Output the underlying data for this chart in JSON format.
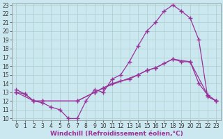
{
  "xlabel": "Windchill (Refroidissement éolien,°C)",
  "bg_color": "#cbe8f0",
  "line_color": "#993399",
  "grid_color": "#aacccc",
  "xlim": [
    -0.5,
    23.5
  ],
  "ylim": [
    9.8,
    23.2
  ],
  "xticks": [
    0,
    1,
    2,
    3,
    4,
    5,
    6,
    7,
    8,
    9,
    10,
    11,
    12,
    13,
    14,
    15,
    16,
    17,
    18,
    19,
    20,
    21,
    22,
    23
  ],
  "yticks": [
    10,
    11,
    12,
    13,
    14,
    15,
    16,
    17,
    18,
    19,
    20,
    21,
    22,
    23
  ],
  "line1_x": [
    0,
    1,
    2,
    3,
    4,
    5,
    6,
    7,
    8,
    9,
    10,
    11,
    12,
    13,
    14,
    15,
    16,
    17,
    18,
    19,
    20,
    21,
    22,
    23
  ],
  "line1_y": [
    13.3,
    12.8,
    12.0,
    11.8,
    11.3,
    11.0,
    10.0,
    10.0,
    12.0,
    13.3,
    13.0,
    14.5,
    15.0,
    16.5,
    18.3,
    20.0,
    21.0,
    22.3,
    23.0,
    22.3,
    21.5,
    19.0,
    12.5,
    12.0
  ],
  "line2_x": [
    0,
    1,
    2,
    3,
    7,
    9,
    10,
    11,
    12,
    13,
    14,
    15,
    16,
    17,
    18,
    19,
    20,
    21,
    22,
    23
  ],
  "line2_y": [
    13.0,
    12.8,
    12.0,
    12.0,
    12.0,
    13.0,
    13.5,
    14.0,
    14.3,
    14.5,
    15.0,
    15.5,
    15.8,
    16.3,
    16.8,
    16.5,
    16.5,
    14.0,
    12.7,
    12.0
  ],
  "line3_x": [
    0,
    2,
    3,
    7,
    9,
    10,
    14,
    15,
    16,
    18,
    20,
    22,
    23
  ],
  "line3_y": [
    13.0,
    12.0,
    12.0,
    12.0,
    13.0,
    13.5,
    15.0,
    15.5,
    15.8,
    16.8,
    16.5,
    12.7,
    12.0
  ],
  "marker": "+",
  "markersize": 4,
  "linewidth": 0.9,
  "fontsize_label": 6.5,
  "fontsize_tick": 5.5
}
